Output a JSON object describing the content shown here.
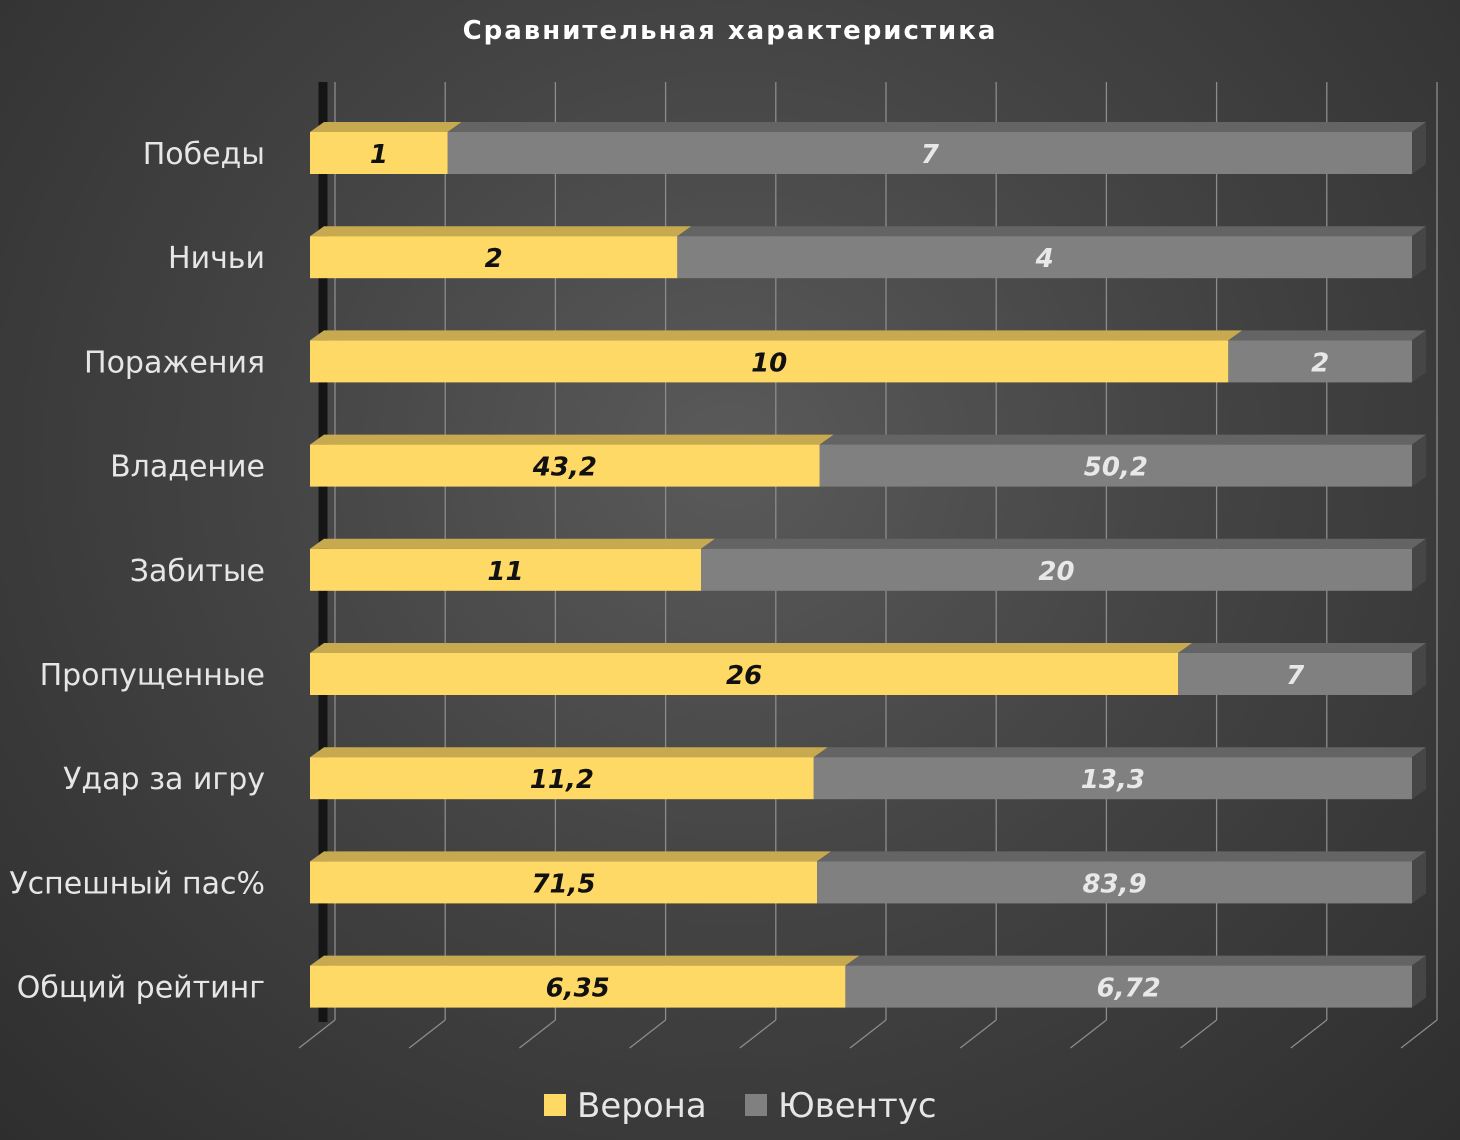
{
  "chart_data": {
    "type": "bar",
    "orientation": "horizontal",
    "stacking": "percent",
    "style": "3d",
    "title": "Сравнительная характеристика",
    "categories": [
      "Победы",
      "Ничьи",
      "Поражения",
      "Владение",
      "Забитые",
      "Пропущенные",
      "Удар за игру",
      "Успешный пас%",
      "Общий рейтинг"
    ],
    "series": [
      {
        "name": "Верона",
        "color": "#FFD966",
        "values": [
          1,
          2,
          10,
          43.2,
          11,
          26,
          11.2,
          71.5,
          6.35
        ],
        "labels": [
          "1",
          "2",
          "10",
          "43,2",
          "11",
          "26",
          "11,2",
          "71,5",
          "6,35"
        ]
      },
      {
        "name": "Ювентус",
        "color": "#808080",
        "values": [
          7,
          4,
          2,
          50.2,
          20,
          7,
          13.3,
          83.9,
          6.72
        ],
        "labels": [
          "7",
          "4",
          "2",
          "50,2",
          "20",
          "7",
          "13,3",
          "83,9",
          "6,72"
        ]
      }
    ],
    "xlim": [
      0,
      100
    ],
    "grid": true,
    "legend_position": "bottom"
  }
}
